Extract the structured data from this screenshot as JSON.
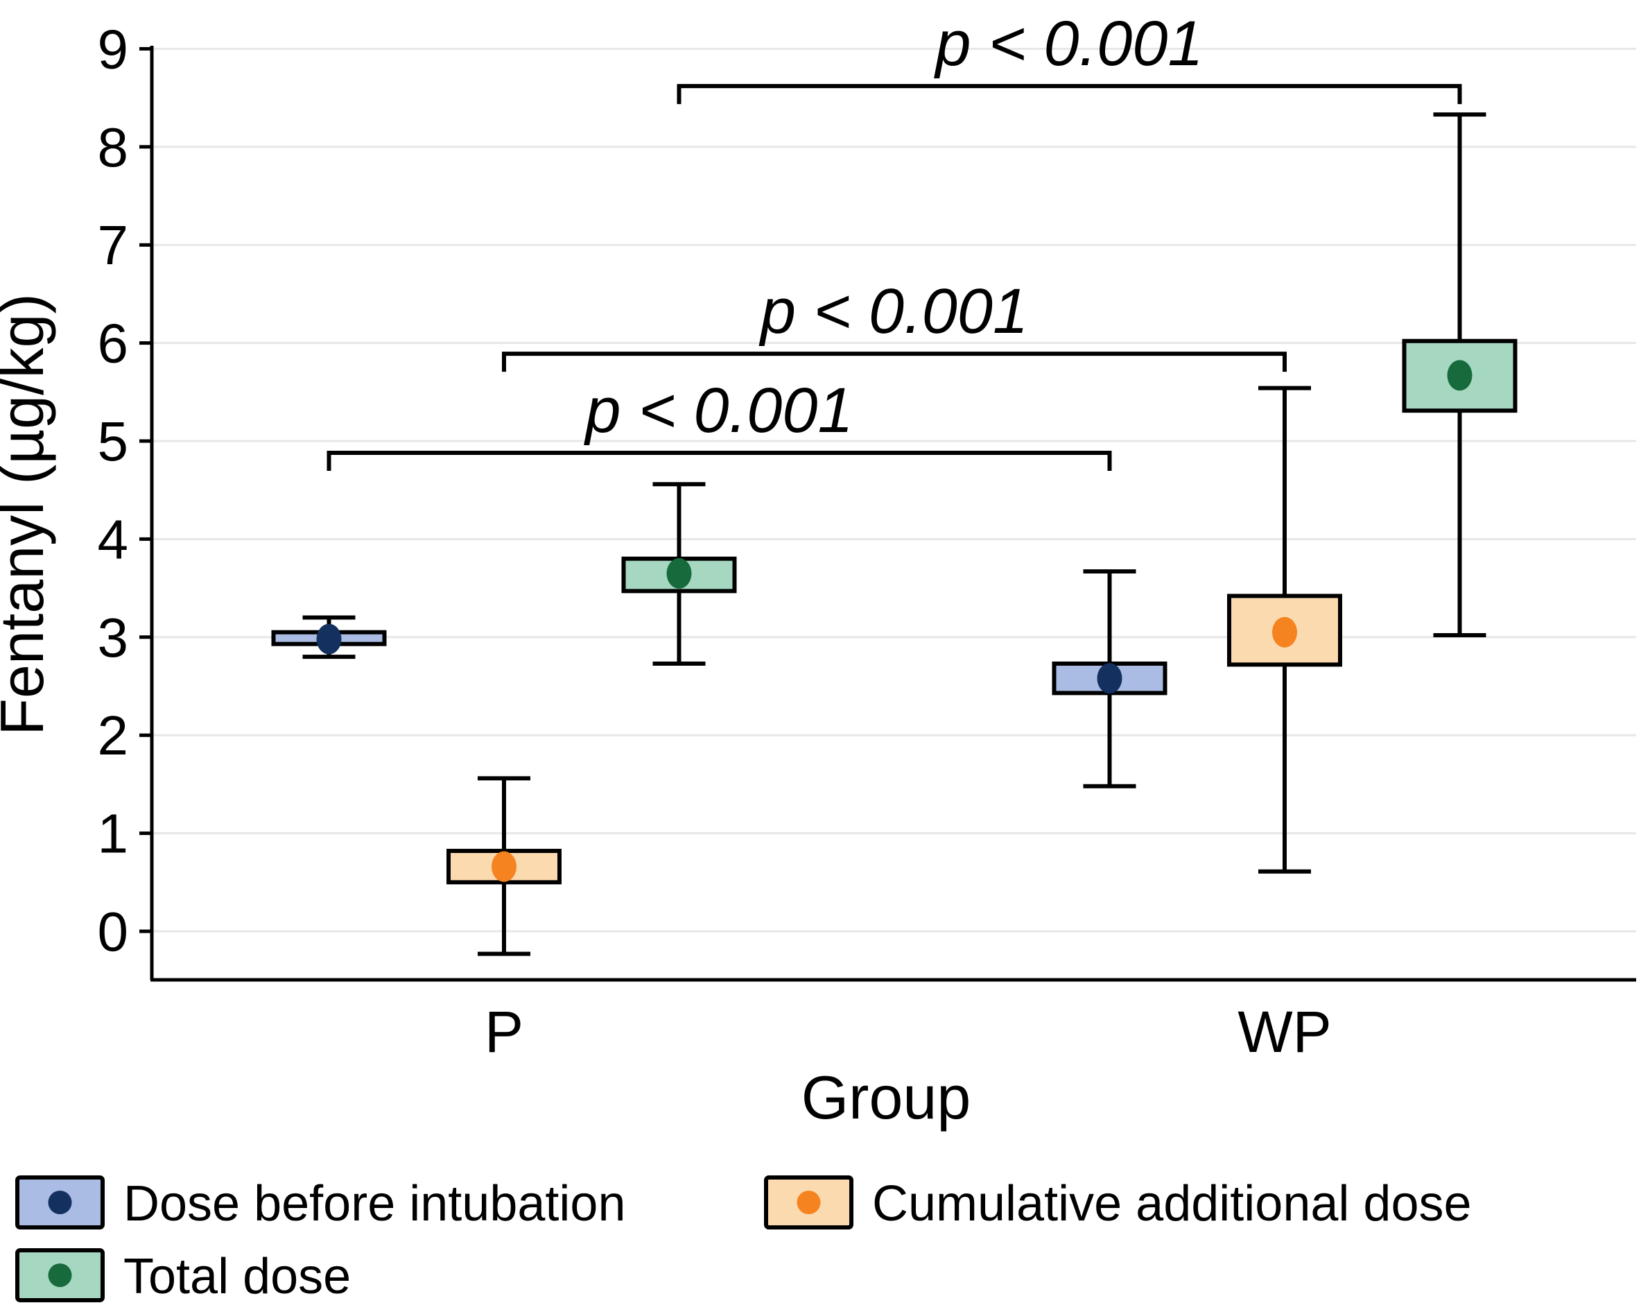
{
  "chart_data": {
    "type": "box",
    "title": "",
    "xlabel": "Group",
    "ylabel": "Fentanyl (µg/kg)",
    "ylim": [
      -0.5,
      9
    ],
    "yticks": [
      0,
      1,
      2,
      3,
      4,
      5,
      6,
      7,
      8,
      9
    ],
    "grid": "horizontal",
    "legend_position": "bottom-left",
    "categories": [
      "P",
      "WP"
    ],
    "series": [
      {
        "name": "Dose before intubation",
        "fill_color": "#aabce3",
        "marker_color": "#13305e",
        "boxes": [
          {
            "category": "P",
            "whisker_low": 2.8,
            "box_low": 2.93,
            "mean": 2.98,
            "box_high": 3.05,
            "whisker_high": 3.2
          },
          {
            "category": "WP",
            "whisker_low": 1.48,
            "box_low": 2.43,
            "mean": 2.58,
            "box_high": 2.73,
            "whisker_high": 3.67
          }
        ]
      },
      {
        "name": "Cumulative additional dose",
        "fill_color": "#fbdab0",
        "marker_color": "#f5831f",
        "boxes": [
          {
            "category": "P",
            "whisker_low": -0.23,
            "box_low": 0.5,
            "mean": 0.66,
            "box_high": 0.82,
            "whisker_high": 1.56
          },
          {
            "category": "WP",
            "whisker_low": 0.61,
            "box_low": 2.72,
            "mean": 3.05,
            "box_high": 3.42,
            "whisker_high": 5.54
          }
        ]
      },
      {
        "name": "Total dose",
        "fill_color": "#a6d7c1",
        "marker_color": "#166a3c",
        "boxes": [
          {
            "category": "P",
            "whisker_low": 2.73,
            "box_low": 3.47,
            "mean": 3.65,
            "box_high": 3.8,
            "whisker_high": 4.56
          },
          {
            "category": "WP",
            "whisker_low": 3.02,
            "box_low": 5.31,
            "mean": 5.67,
            "box_high": 6.02,
            "whisker_high": 8.33
          }
        ]
      }
    ],
    "annotations": [
      {
        "label": "p < 0.001",
        "series_index": 0,
        "y": 4.88,
        "between": [
          "P",
          "WP"
        ]
      },
      {
        "label": "p < 0.001",
        "series_index": 1,
        "y": 5.89,
        "between": [
          "P",
          "WP"
        ]
      },
      {
        "label": "p < 0.001",
        "series_index": 2,
        "y": 8.62,
        "between": [
          "P",
          "WP"
        ]
      }
    ],
    "colors": {
      "axis": "#000000",
      "gridline": "#e7e7e7",
      "text": "#000000",
      "background": "#ffffff"
    }
  }
}
